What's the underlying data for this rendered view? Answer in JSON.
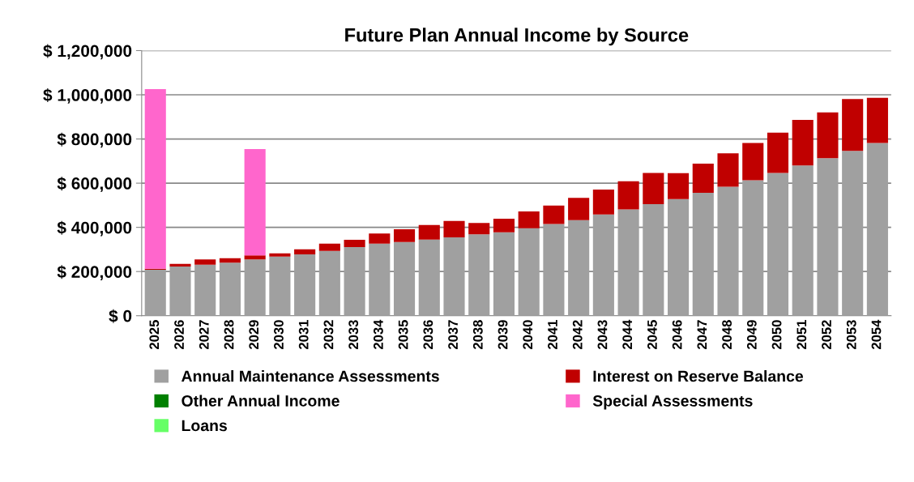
{
  "chart_data": {
    "type": "bar",
    "title": "Future Plan Annual Income by Source",
    "stacked": true,
    "categories": [
      "2025",
      "2026",
      "2027",
      "2028",
      "2029",
      "2030",
      "2031",
      "2032",
      "2033",
      "2034",
      "2035",
      "2036",
      "2037",
      "2038",
      "2039",
      "2040",
      "2041",
      "2042",
      "2043",
      "2044",
      "2045",
      "2046",
      "2047",
      "2048",
      "2049",
      "2050",
      "2051",
      "2052",
      "2053",
      "2054"
    ],
    "series": [
      {
        "name": "Annual Maintenance Assessments",
        "color": "#a0a0a0",
        "values": [
          208000,
          223000,
          231000,
          240000,
          255000,
          268000,
          278000,
          293000,
          311000,
          326000,
          334000,
          345000,
          355000,
          368000,
          378000,
          396000,
          415000,
          433000,
          458000,
          481000,
          505000,
          528000,
          556000,
          584000,
          613000,
          646000,
          680000,
          713000,
          746000,
          782000
        ]
      },
      {
        "name": "Interest on Reserve Balance",
        "color": "#c00000",
        "values": [
          5000,
          12000,
          24000,
          20000,
          18000,
          14000,
          23000,
          33000,
          33000,
          46000,
          57000,
          66000,
          74000,
          52000,
          61000,
          76000,
          84000,
          100000,
          113000,
          128000,
          141000,
          117000,
          132000,
          151000,
          169000,
          183000,
          206000,
          207000,
          235000,
          204000
        ]
      },
      {
        "name": "Other Annual Income",
        "color": "#008000",
        "values": [
          0,
          0,
          0,
          0,
          0,
          0,
          0,
          0,
          0,
          0,
          0,
          0,
          0,
          0,
          0,
          0,
          0,
          0,
          0,
          0,
          0,
          0,
          0,
          0,
          0,
          0,
          0,
          0,
          0,
          0
        ]
      },
      {
        "name": "Special Assessments",
        "color": "#ff66cc",
        "values": [
          813000,
          0,
          0,
          0,
          481000,
          0,
          0,
          0,
          0,
          0,
          0,
          0,
          0,
          0,
          0,
          0,
          0,
          0,
          0,
          0,
          0,
          0,
          0,
          0,
          0,
          0,
          0,
          0,
          0,
          0
        ]
      },
      {
        "name": "Loans",
        "color": "#66ff66",
        "values": [
          0,
          0,
          0,
          0,
          0,
          0,
          0,
          0,
          0,
          0,
          0,
          0,
          0,
          0,
          0,
          0,
          0,
          0,
          0,
          0,
          0,
          0,
          0,
          0,
          0,
          0,
          0,
          0,
          0,
          0
        ]
      }
    ],
    "ylim": [
      0,
      1200000
    ],
    "yticks": [
      {
        "value": 0,
        "label": "$ 0"
      },
      {
        "value": 200000,
        "label": "$ 200,000"
      },
      {
        "value": 400000,
        "label": "$ 400,000"
      },
      {
        "value": 600000,
        "label": "$ 600,000"
      },
      {
        "value": 800000,
        "label": "$ 800,000"
      },
      {
        "value": 1000000,
        "label": "$ 1,000,000"
      },
      {
        "value": 1200000,
        "label": "$ 1,200,000"
      }
    ],
    "grid": "y",
    "legend": "bottom"
  }
}
